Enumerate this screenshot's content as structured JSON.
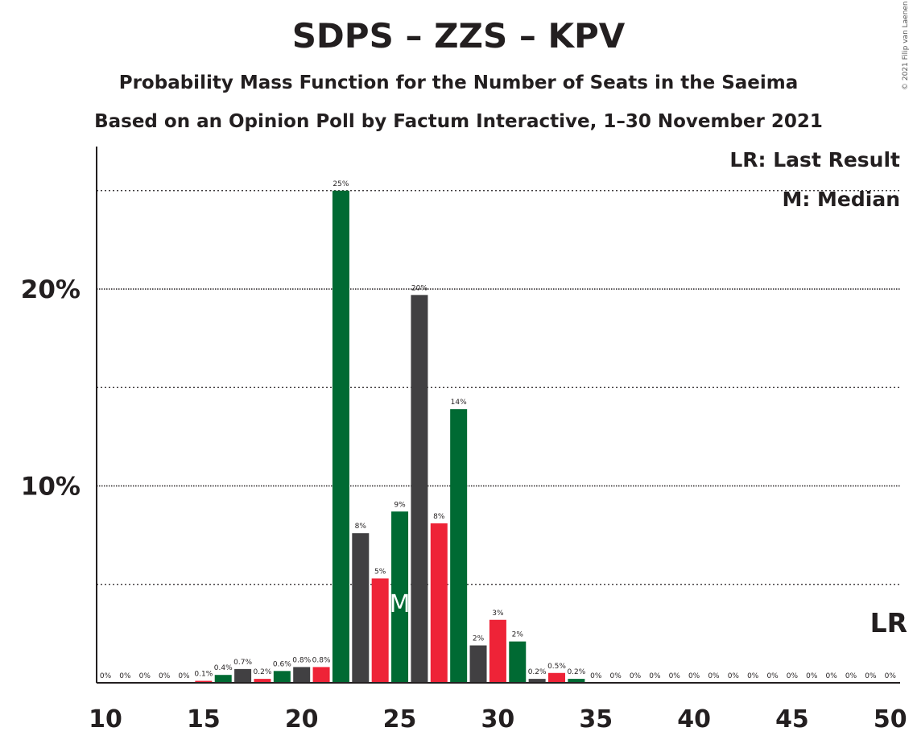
{
  "chart_data": {
    "type": "bar",
    "title": "SDPS – ZZS – KPV",
    "subtitle": "Probability Mass Function for the Number of Seats in the Saeima",
    "subtitle2": "Based on an Opinion Poll by Factum Interactive, 1–30 November 2021",
    "copyright": "© 2021 Filip van Laenen",
    "legend": {
      "lr": "LR: Last Result",
      "m": "M: Median"
    },
    "x": [
      10,
      11,
      12,
      13,
      14,
      15,
      16,
      17,
      18,
      19,
      20,
      21,
      22,
      23,
      24,
      25,
      26,
      27,
      28,
      29,
      30,
      31,
      32,
      33,
      34,
      35,
      36,
      37,
      38,
      39,
      40,
      41,
      42,
      43,
      44,
      45,
      46,
      47,
      48,
      49,
      50
    ],
    "values": [
      0,
      0,
      0,
      0,
      0,
      0.1,
      0.4,
      0.7,
      0.2,
      0.6,
      0.8,
      0.8,
      25,
      7.6,
      5.3,
      8.7,
      19.7,
      8.1,
      13.9,
      1.9,
      3.2,
      2.1,
      0.2,
      0.5,
      0.2,
      0,
      0,
      0,
      0,
      0,
      0,
      0,
      0,
      0,
      0,
      0,
      0,
      0,
      0,
      0,
      0
    ],
    "labels": [
      "0%",
      "0%",
      "0%",
      "0%",
      "0%",
      "0.1%",
      "0.4%",
      "0.7%",
      "0.2%",
      "0.6%",
      "0.8%",
      "0.8%",
      "25%",
      "8%",
      "5%",
      "9%",
      "20%",
      "8%",
      "14%",
      "2%",
      "3%",
      "2%",
      "0.2%",
      "0.5%",
      "0.2%",
      "0%",
      "0%",
      "0%",
      "0%",
      "0%",
      "0%",
      "0%",
      "0%",
      "0%",
      "0%",
      "0%",
      "0%",
      "0%",
      "0%",
      "0%",
      "0%"
    ],
    "xticks": [
      10,
      15,
      20,
      25,
      30,
      35,
      40,
      45,
      50
    ],
    "xtick_labels": [
      "10",
      "15",
      "20",
      "25",
      "30",
      "35",
      "40",
      "45",
      "50"
    ],
    "yticks": [
      10,
      20
    ],
    "ytick_labels": [
      "10%",
      "20%"
    ],
    "ylim": [
      0,
      27
    ],
    "xlim": [
      10,
      50
    ],
    "median": 25,
    "median_label": "M",
    "last_result": 50,
    "last_result_label": "LR",
    "colors": {
      "green": "#006a33",
      "dark": "#414042",
      "red": "#ee2337"
    },
    "color_cycle": [
      "green",
      "dark",
      "red"
    ]
  }
}
